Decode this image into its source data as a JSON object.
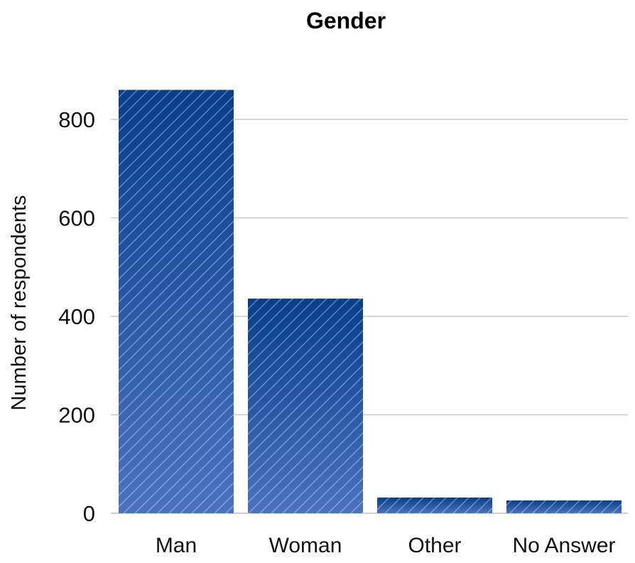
{
  "chart_data": {
    "type": "bar",
    "title": "Gender",
    "xlabel": "",
    "ylabel": "Number of respondents",
    "categories": [
      "Man",
      "Woman",
      "Other",
      "No Answer"
    ],
    "values": [
      860,
      436,
      32,
      26
    ],
    "ylim": [
      0,
      860
    ],
    "yticks": [
      "0",
      "200",
      "400",
      "600",
      "800"
    ],
    "grid": true,
    "colors": {
      "bar_top": "#073e8a",
      "bar_bottom": "#4a72c0",
      "hatch": "#ffffff",
      "grid": "#c9c9c9"
    }
  }
}
